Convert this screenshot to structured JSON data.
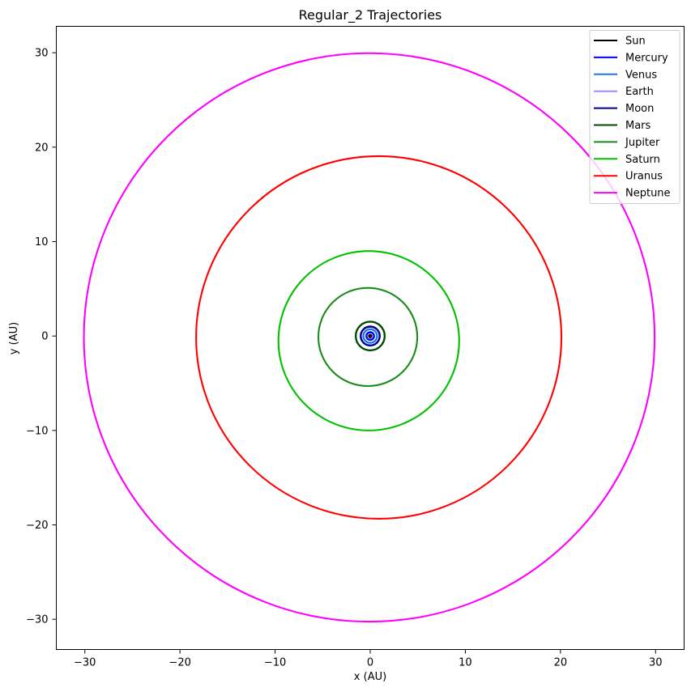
{
  "chart_data": {
    "type": "line",
    "title": "Regular_2 Trajectories",
    "xlabel": "x (AU)",
    "ylabel": "y (AU)",
    "xlim": [
      -33,
      33
    ],
    "ylim": [
      -33.2,
      32.8
    ],
    "xticks": [
      -30,
      -20,
      -10,
      0,
      10,
      20,
      30
    ],
    "yticks": [
      -30,
      -20,
      -10,
      0,
      10,
      20,
      30
    ],
    "xtick_labels": [
      "−30",
      "−20",
      "−10",
      "0",
      "10",
      "20",
      "30"
    ],
    "ytick_labels": [
      "−30",
      "−20",
      "−10",
      "0",
      "10",
      "20",
      "30"
    ],
    "grid": false,
    "legend_position": "top-right",
    "series": [
      {
        "name": "Sun",
        "color": "#000000",
        "center": [
          0.0,
          0.0
        ],
        "rx": 0.05,
        "ry": 0.05
      },
      {
        "name": "Mercury",
        "color": "#0000ff",
        "center": [
          0.0,
          0.0
        ],
        "rx": 0.4,
        "ry": 0.4
      },
      {
        "name": "Venus",
        "color": "#1f77e4",
        "center": [
          0.0,
          0.0
        ],
        "rx": 0.72,
        "ry": 0.72
      },
      {
        "name": "Earth",
        "color": "#9b8cff",
        "center": [
          0.0,
          0.0
        ],
        "rx": 1.0,
        "ry": 1.0
      },
      {
        "name": "Moon",
        "color": "#00008b",
        "center": [
          0.0,
          0.0
        ],
        "rx": 1.0,
        "ry": 1.0
      },
      {
        "name": "Mars",
        "color": "#004d00",
        "center": [
          0.0,
          0.0
        ],
        "rx": 1.52,
        "ry": 1.52
      },
      {
        "name": "Jupiter",
        "color": "#1a8a1a",
        "center": [
          -0.25,
          -0.1
        ],
        "rx": 5.2,
        "ry": 5.2
      },
      {
        "name": "Saturn",
        "color": "#00c000",
        "center": [
          -0.15,
          -0.5
        ],
        "rx": 9.5,
        "ry": 9.5
      },
      {
        "name": "Uranus",
        "color": "#ff0000",
        "center": [
          0.9,
          -0.15
        ],
        "rx": 19.2,
        "ry": 19.2
      },
      {
        "name": "Neptune",
        "color": "#ff00ff",
        "center": [
          -0.1,
          -0.15
        ],
        "rx": 30.0,
        "ry": 30.1
      }
    ]
  }
}
